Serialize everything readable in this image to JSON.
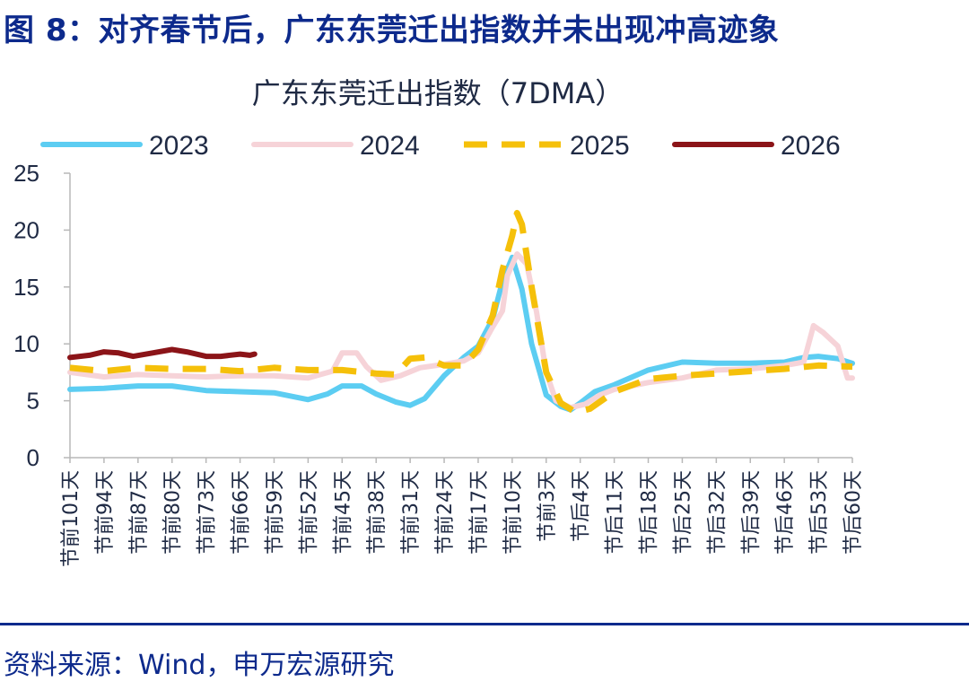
{
  "figure": {
    "title": "图 8：对齐春节后，广东东莞迁出指数并未出现冲高迹象",
    "source": "资料来源：Wind，申万宏源研究"
  },
  "chart_data": {
    "type": "line",
    "title": "广东东莞迁出指数（7DMA）",
    "xlabel": "",
    "ylabel": "",
    "ylim": [
      0,
      25
    ],
    "yticks": [
      0,
      5,
      10,
      15,
      20,
      25
    ],
    "x_range": [
      -101,
      60
    ],
    "xtick_values": [
      -101,
      -94,
      -87,
      -80,
      -73,
      -66,
      -59,
      -52,
      -45,
      -38,
      -31,
      -24,
      -17,
      -10,
      -3,
      4,
      11,
      18,
      25,
      32,
      39,
      46,
      53,
      60
    ],
    "xtick_labels": [
      "节前101天",
      "节前94天",
      "节前87天",
      "节前80天",
      "节前73天",
      "节前66天",
      "节前59天",
      "节前52天",
      "节前45天",
      "节前38天",
      "节前31天",
      "节前24天",
      "节前17天",
      "节前10天",
      "节前3天",
      "节后4天",
      "节后11天",
      "节后18天",
      "节后25天",
      "节后32天",
      "节后39天",
      "节后46天",
      "节后53天",
      "节后60天"
    ],
    "grid": false,
    "legend_position": "top",
    "series": [
      {
        "name": "2023",
        "color": "#5ccdf2",
        "dash": "solid",
        "points": [
          [
            -101,
            6.0
          ],
          [
            -94,
            6.1
          ],
          [
            -87,
            6.3
          ],
          [
            -80,
            6.3
          ],
          [
            -73,
            5.9
          ],
          [
            -66,
            5.8
          ],
          [
            -59,
            5.7
          ],
          [
            -52,
            5.1
          ],
          [
            -48,
            5.6
          ],
          [
            -45,
            6.3
          ],
          [
            -41,
            6.3
          ],
          [
            -38,
            5.6
          ],
          [
            -34,
            4.9
          ],
          [
            -31,
            4.6
          ],
          [
            -28,
            5.2
          ],
          [
            -24,
            7.2
          ],
          [
            -20,
            8.8
          ],
          [
            -17,
            9.8
          ],
          [
            -14,
            12.2
          ],
          [
            -12,
            15.5
          ],
          [
            -10,
            17.6
          ],
          [
            -8,
            14.8
          ],
          [
            -6,
            10.0
          ],
          [
            -3,
            5.5
          ],
          [
            0,
            4.5
          ],
          [
            2,
            4.2
          ],
          [
            4,
            4.8
          ],
          [
            7,
            5.8
          ],
          [
            11,
            6.4
          ],
          [
            18,
            7.7
          ],
          [
            25,
            8.4
          ],
          [
            32,
            8.3
          ],
          [
            39,
            8.3
          ],
          [
            46,
            8.4
          ],
          [
            50,
            8.8
          ],
          [
            53,
            8.9
          ],
          [
            57,
            8.7
          ],
          [
            60,
            8.3
          ]
        ]
      },
      {
        "name": "2024",
        "color": "#f6d3d8",
        "dash": "solid",
        "points": [
          [
            -101,
            7.5
          ],
          [
            -94,
            7.1
          ],
          [
            -87,
            7.3
          ],
          [
            -80,
            7.2
          ],
          [
            -73,
            7.1
          ],
          [
            -66,
            7.2
          ],
          [
            -59,
            7.2
          ],
          [
            -52,
            7.0
          ],
          [
            -47,
            7.6
          ],
          [
            -45,
            9.2
          ],
          [
            -42,
            9.2
          ],
          [
            -40,
            8.0
          ],
          [
            -37,
            6.8
          ],
          [
            -33,
            7.2
          ],
          [
            -29,
            7.9
          ],
          [
            -24,
            8.2
          ],
          [
            -20,
            8.5
          ],
          [
            -17,
            9.2
          ],
          [
            -14,
            11.5
          ],
          [
            -12,
            12.9
          ],
          [
            -11,
            16.0
          ],
          [
            -9,
            17.9
          ],
          [
            -7,
            17.0
          ],
          [
            -5,
            12.8
          ],
          [
            -3,
            7.5
          ],
          [
            -1,
            5.0
          ],
          [
            2,
            4.4
          ],
          [
            5,
            4.7
          ],
          [
            8,
            5.5
          ],
          [
            11,
            6.0
          ],
          [
            18,
            6.6
          ],
          [
            25,
            7.0
          ],
          [
            32,
            7.7
          ],
          [
            39,
            7.8
          ],
          [
            46,
            8.1
          ],
          [
            50,
            8.4
          ],
          [
            52,
            11.6
          ],
          [
            54,
            11.0
          ],
          [
            57,
            9.8
          ],
          [
            59,
            7.0
          ],
          [
            60,
            7.0
          ]
        ]
      },
      {
        "name": "2025",
        "color": "#f5c00a",
        "dash": "dashed",
        "points": [
          [
            -101,
            7.9
          ],
          [
            -94,
            7.6
          ],
          [
            -87,
            7.9
          ],
          [
            -80,
            7.8
          ],
          [
            -73,
            7.8
          ],
          [
            -66,
            7.6
          ],
          [
            -59,
            7.9
          ],
          [
            -52,
            7.7
          ],
          [
            -45,
            7.7
          ],
          [
            -38,
            7.4
          ],
          [
            -34,
            7.3
          ],
          [
            -31,
            8.7
          ],
          [
            -28,
            8.8
          ],
          [
            -24,
            8.1
          ],
          [
            -20,
            8.1
          ],
          [
            -17,
            9.5
          ],
          [
            -14,
            12.5
          ],
          [
            -12,
            16.5
          ],
          [
            -10,
            19.5
          ],
          [
            -9,
            21.5
          ],
          [
            -8,
            20.5
          ],
          [
            -6,
            15.0
          ],
          [
            -3,
            7.5
          ],
          [
            0,
            4.8
          ],
          [
            3,
            4.0
          ],
          [
            6,
            4.3
          ],
          [
            9,
            5.2
          ],
          [
            11,
            5.8
          ],
          [
            18,
            6.9
          ],
          [
            25,
            7.2
          ],
          [
            32,
            7.4
          ],
          [
            39,
            7.6
          ],
          [
            46,
            7.8
          ],
          [
            53,
            8.1
          ],
          [
            60,
            8.0
          ]
        ]
      },
      {
        "name": "2026",
        "color": "#8b1418",
        "dash": "solid",
        "points": [
          [
            -101,
            8.8
          ],
          [
            -97,
            9.0
          ],
          [
            -94,
            9.3
          ],
          [
            -91,
            9.2
          ],
          [
            -88,
            8.9
          ],
          [
            -84,
            9.2
          ],
          [
            -80,
            9.5
          ],
          [
            -77,
            9.3
          ],
          [
            -73,
            8.9
          ],
          [
            -70,
            8.9
          ],
          [
            -66,
            9.1
          ],
          [
            -64,
            9.0
          ],
          [
            -63,
            9.1
          ]
        ]
      }
    ]
  }
}
